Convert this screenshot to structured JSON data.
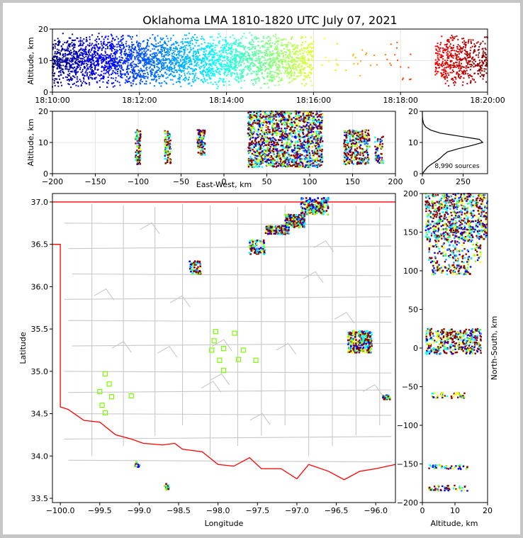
{
  "title": "Oklahoma LMA 1810-1820 UTC July 07, 2021",
  "source_count_label": "8,990 sources",
  "colors": {
    "state_border": "#ff0000",
    "county_lines": "#c8c8c8",
    "station_marker": "#7cfc00",
    "grid": "#e6e6e6"
  },
  "chart_data": [
    {
      "name": "time-height",
      "type": "scatter",
      "xlabel": "",
      "ylabel": "Altitude, km",
      "x_ticks": [
        "18:10:00",
        "18:12:00",
        "18:14:00",
        "18:16:00",
        "18:18:00",
        "18:20:00"
      ],
      "xlim_minutes": [
        0,
        10
      ],
      "ylim": [
        0,
        20
      ],
      "y_ticks": [
        0,
        10,
        20
      ],
      "color_by": "time",
      "colormap": "jet",
      "grid": true,
      "clusters": [
        {
          "t": [
            0.0,
            0.5
          ],
          "z": [
            1,
            19
          ],
          "n": 300
        },
        {
          "t": [
            0.5,
            1.0
          ],
          "z": [
            1,
            19
          ],
          "n": 300
        },
        {
          "t": [
            1.0,
            1.5
          ],
          "z": [
            1,
            19
          ],
          "n": 300
        },
        {
          "t": [
            1.5,
            2.0
          ],
          "z": [
            1,
            19
          ],
          "n": 280
        },
        {
          "t": [
            2.0,
            2.5
          ],
          "z": [
            1,
            19
          ],
          "n": 280
        },
        {
          "t": [
            2.5,
            3.0
          ],
          "z": [
            1,
            19
          ],
          "n": 280
        },
        {
          "t": [
            3.0,
            3.5
          ],
          "z": [
            1,
            19
          ],
          "n": 260
        },
        {
          "t": [
            3.5,
            4.0
          ],
          "z": [
            1,
            19
          ],
          "n": 260
        },
        {
          "t": [
            4.0,
            4.5
          ],
          "z": [
            1,
            19
          ],
          "n": 260
        },
        {
          "t": [
            4.5,
            5.0
          ],
          "z": [
            1,
            19
          ],
          "n": 240
        },
        {
          "t": [
            5.0,
            5.5
          ],
          "z": [
            1,
            19
          ],
          "n": 240
        },
        {
          "t": [
            5.5,
            6.0
          ],
          "z": [
            1,
            19
          ],
          "n": 200
        },
        {
          "t": [
            6.0,
            8.4
          ],
          "z": [
            4,
            17
          ],
          "n": 40
        },
        {
          "t": [
            8.8,
            10.0
          ],
          "z": [
            2,
            19
          ],
          "n": 500
        }
      ]
    },
    {
      "name": "east-west-height",
      "type": "scatter",
      "xlabel": "East-West, km",
      "ylabel": "Altitude, km",
      "xlim": [
        -200,
        200
      ],
      "x_ticks": [
        -200,
        -150,
        -100,
        -50,
        0,
        50,
        100,
        150,
        200
      ],
      "ylim": [
        0,
        20
      ],
      "y_ticks": [
        0,
        10,
        20
      ],
      "grid": true,
      "clusters": [
        {
          "x": [
            -103,
            -97
          ],
          "z": [
            3,
            14
          ],
          "n": 90
        },
        {
          "x": [
            -69,
            -62
          ],
          "z": [
            3,
            14
          ],
          "n": 90
        },
        {
          "x": [
            -31,
            -22
          ],
          "z": [
            6,
            14
          ],
          "n": 110
        },
        {
          "x": [
            28,
            115
          ],
          "z": [
            2,
            20
          ],
          "n": 1400
        },
        {
          "x": [
            140,
            170
          ],
          "z": [
            3,
            14
          ],
          "n": 320
        },
        {
          "x": [
            176,
            186
          ],
          "z": [
            3,
            12
          ],
          "n": 60
        }
      ]
    },
    {
      "name": "altitude-histogram",
      "type": "line",
      "xlabel": "",
      "ylabel": "",
      "xlim": [
        0,
        400
      ],
      "x_ticks": [
        0,
        250
      ],
      "ylim": [
        0,
        20
      ],
      "y_ticks": [
        0,
        10,
        20
      ],
      "annotation": "8,990 sources",
      "counts_by_km": [
        {
          "z": 0,
          "n": 0
        },
        {
          "z": 1,
          "n": 15
        },
        {
          "z": 2,
          "n": 30
        },
        {
          "z": 3,
          "n": 55
        },
        {
          "z": 4,
          "n": 85
        },
        {
          "z": 5,
          "n": 110
        },
        {
          "z": 6,
          "n": 130
        },
        {
          "z": 7,
          "n": 155
        },
        {
          "z": 8,
          "n": 220
        },
        {
          "z": 9,
          "n": 300
        },
        {
          "z": 10,
          "n": 370
        },
        {
          "z": 11,
          "n": 350
        },
        {
          "z": 12,
          "n": 230
        },
        {
          "z": 13,
          "n": 110
        },
        {
          "z": 14,
          "n": 50
        },
        {
          "z": 15,
          "n": 20
        },
        {
          "z": 16,
          "n": 8
        },
        {
          "z": 17,
          "n": 3
        },
        {
          "z": 18,
          "n": 1
        },
        {
          "z": 19,
          "n": 0
        },
        {
          "z": 20,
          "n": 0
        }
      ]
    },
    {
      "name": "plan-view-map",
      "type": "scatter",
      "xlabel": "Longitude",
      "ylabel": "Latitude",
      "xlim": [
        -100.1,
        -95.75
      ],
      "ylim": [
        33.45,
        37.1
      ],
      "x_ticks": [
        -100.0,
        -99.5,
        -99.0,
        -98.5,
        -98.0,
        -97.5,
        -97.0,
        -96.5,
        -96.0
      ],
      "y_ticks": [
        33.5,
        34.0,
        34.5,
        35.0,
        35.5,
        36.0,
        36.5,
        37.0
      ],
      "x_tick_labels": [
        "−100.0",
        "−99.5",
        "−99.0",
        "−98.5",
        "−98.0",
        "−97.5",
        "−97.0",
        "−96.5",
        "−96.0"
      ],
      "y_tick_labels": [
        "33.5",
        "34.0",
        "34.5",
        "35.0",
        "35.5",
        "36.0",
        "36.5",
        "37.0"
      ],
      "clusters": [
        {
          "lon": [
            -96.95,
            -96.6
          ],
          "lat": [
            36.85,
            37.05
          ],
          "n": 200
        },
        {
          "lon": [
            -97.15,
            -96.9
          ],
          "lat": [
            36.7,
            36.85
          ],
          "n": 180
        },
        {
          "lon": [
            -97.4,
            -97.1
          ],
          "lat": [
            36.62,
            36.72
          ],
          "n": 120
        },
        {
          "lon": [
            -97.6,
            -97.4
          ],
          "lat": [
            36.38,
            36.55
          ],
          "n": 80
        },
        {
          "lon": [
            -98.36,
            -98.22
          ],
          "lat": [
            36.15,
            36.3
          ],
          "n": 60
        },
        {
          "lon": [
            -96.35,
            -96.05
          ],
          "lat": [
            35.22,
            35.48
          ],
          "n": 250
        },
        {
          "lon": [
            -95.92,
            -95.82
          ],
          "lat": [
            34.66,
            34.72
          ],
          "n": 30
        },
        {
          "lon": [
            -99.06,
            -99.0
          ],
          "lat": [
            33.87,
            33.93
          ],
          "n": 15
        },
        {
          "lon": [
            -98.68,
            -98.62
          ],
          "lat": [
            33.6,
            33.67
          ],
          "n": 20
        }
      ],
      "stations": [
        {
          "lon": -99.43,
          "lat": 34.97
        },
        {
          "lon": -99.38,
          "lat": 34.85
        },
        {
          "lon": -99.5,
          "lat": 34.76
        },
        {
          "lon": -99.35,
          "lat": 34.7
        },
        {
          "lon": -99.47,
          "lat": 34.6
        },
        {
          "lon": -99.43,
          "lat": 34.51
        },
        {
          "lon": -99.1,
          "lat": 34.71
        },
        {
          "lon": -98.03,
          "lat": 35.47
        },
        {
          "lon": -98.05,
          "lat": 35.36
        },
        {
          "lon": -98.08,
          "lat": 35.25
        },
        {
          "lon": -97.93,
          "lat": 35.27
        },
        {
          "lon": -97.98,
          "lat": 35.13
        },
        {
          "lon": -97.93,
          "lat": 35.01
        },
        {
          "lon": -97.79,
          "lat": 35.45
        },
        {
          "lon": -97.68,
          "lat": 35.25
        },
        {
          "lon": -97.74,
          "lat": 35.14
        },
        {
          "lon": -97.52,
          "lat": 35.13
        }
      ]
    },
    {
      "name": "north-south-height",
      "type": "scatter",
      "xlabel": "Altitude, km",
      "ylabel": "North-South, km",
      "xlim": [
        0,
        20
      ],
      "x_ticks": [
        0,
        10,
        20
      ],
      "ylim": [
        -200,
        200
      ],
      "y_ticks": [
        -200,
        -150,
        -100,
        -50,
        0,
        50,
        100,
        150,
        200
      ],
      "clusters": [
        {
          "y": [
            140,
            200
          ],
          "z": [
            1,
            20
          ],
          "n": 700
        },
        {
          "y": [
            110,
            140
          ],
          "z": [
            2,
            18
          ],
          "n": 150
        },
        {
          "y": [
            95,
            108
          ],
          "z": [
            3,
            15
          ],
          "n": 90
        },
        {
          "y": [
            -8,
            25
          ],
          "z": [
            1,
            18
          ],
          "n": 400
        },
        {
          "y": [
            -65,
            -58
          ],
          "z": [
            3,
            13
          ],
          "n": 40
        },
        {
          "y": [
            -157,
            -151
          ],
          "z": [
            2,
            14
          ],
          "n": 40
        },
        {
          "y": [
            -185,
            -178
          ],
          "z": [
            2,
            14
          ],
          "n": 50
        }
      ]
    }
  ]
}
